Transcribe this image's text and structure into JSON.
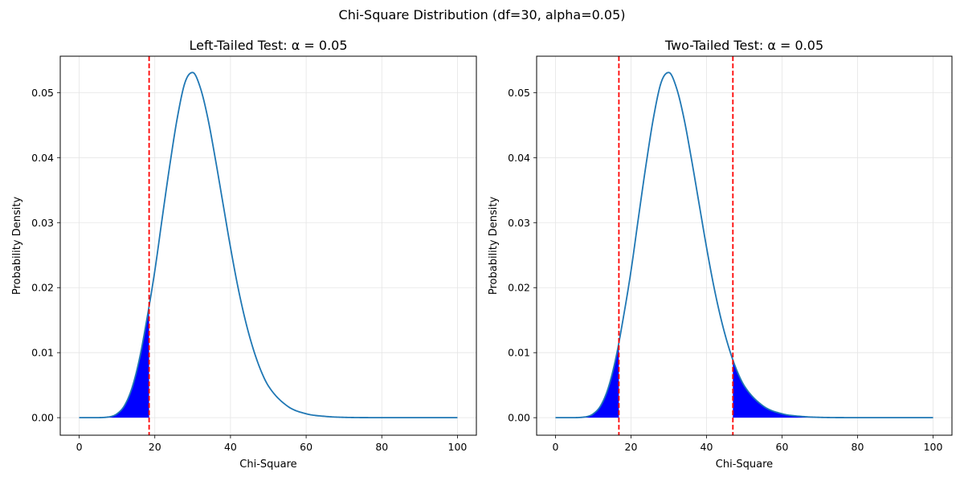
{
  "figure": {
    "suptitle": "Chi-Square Distribution (df=30, alpha=0.05)"
  },
  "colors": {
    "curve": "#1f77b4",
    "shade": "#0000ff",
    "critical_line": "#ff0000",
    "grid": "#e5e5e5"
  },
  "chart_data": [
    {
      "type": "area",
      "title": "Left-Tailed Test: α = 0.05",
      "xlabel": "Chi-Square",
      "ylabel": "Probability Density",
      "df": 30,
      "alpha": 0.05,
      "xlim": [
        -5,
        105
      ],
      "ylim": [
        -0.0027,
        0.0556
      ],
      "xticks": [
        0,
        20,
        40,
        60,
        80,
        100
      ],
      "xtick_labels": [
        "0",
        "20",
        "40",
        "60",
        "80",
        "100"
      ],
      "yticks": [
        0,
        0.01,
        0.02,
        0.03,
        0.04,
        0.05
      ],
      "ytick_labels": [
        "0.00",
        "0.01",
        "0.02",
        "0.03",
        "0.04",
        "0.05"
      ],
      "grid": true,
      "curve": {
        "x": [
          0,
          4,
          8,
          10,
          12,
          14,
          16,
          18,
          20,
          22,
          24,
          26,
          28,
          30,
          32,
          34,
          36,
          38,
          40,
          42,
          44,
          46,
          48,
          50,
          55,
          60,
          65,
          70,
          80,
          90,
          100
        ],
        "y": [
          0,
          2e-07,
          0.00013,
          0.00059,
          0.00188,
          0.00463,
          0.00922,
          0.0155,
          0.0226,
          0.0309,
          0.039,
          0.0463,
          0.0516,
          0.0531,
          0.0508,
          0.0461,
          0.0398,
          0.033,
          0.0262,
          0.02,
          0.0148,
          0.0106,
          0.0073,
          0.0049,
          0.0018,
          0.0006,
          0.0002,
          5e-05,
          3e-06,
          1e-07,
          0
        ]
      },
      "critical_values": [
        18.49
      ],
      "shaded_regions": [
        [
          0,
          18.49
        ]
      ]
    },
    {
      "type": "area",
      "title": "Two-Tailed Test: α = 0.05",
      "xlabel": "Chi-Square",
      "ylabel": "Probability Density",
      "df": 30,
      "alpha": 0.05,
      "xlim": [
        -5,
        105
      ],
      "ylim": [
        -0.0027,
        0.0556
      ],
      "xticks": [
        0,
        20,
        40,
        60,
        80,
        100
      ],
      "xtick_labels": [
        "0",
        "20",
        "40",
        "60",
        "80",
        "100"
      ],
      "yticks": [
        0,
        0.01,
        0.02,
        0.03,
        0.04,
        0.05
      ],
      "ytick_labels": [
        "0.00",
        "0.01",
        "0.02",
        "0.03",
        "0.04",
        "0.05"
      ],
      "grid": true,
      "curve": {
        "x": [
          0,
          4,
          8,
          10,
          12,
          14,
          16,
          18,
          20,
          22,
          24,
          26,
          28,
          30,
          32,
          34,
          36,
          38,
          40,
          42,
          44,
          46,
          48,
          50,
          55,
          60,
          65,
          70,
          80,
          90,
          100
        ],
        "y": [
          0,
          2e-07,
          0.00013,
          0.00059,
          0.00188,
          0.00463,
          0.00922,
          0.0155,
          0.0226,
          0.0309,
          0.039,
          0.0463,
          0.0516,
          0.0531,
          0.0508,
          0.0461,
          0.0398,
          0.033,
          0.0262,
          0.02,
          0.0148,
          0.0106,
          0.0073,
          0.0049,
          0.0018,
          0.0006,
          0.0002,
          5e-05,
          3e-06,
          1e-07,
          0
        ]
      },
      "critical_values": [
        16.79,
        46.98
      ],
      "shaded_regions": [
        [
          0,
          16.79
        ],
        [
          46.98,
          100
        ]
      ]
    }
  ]
}
